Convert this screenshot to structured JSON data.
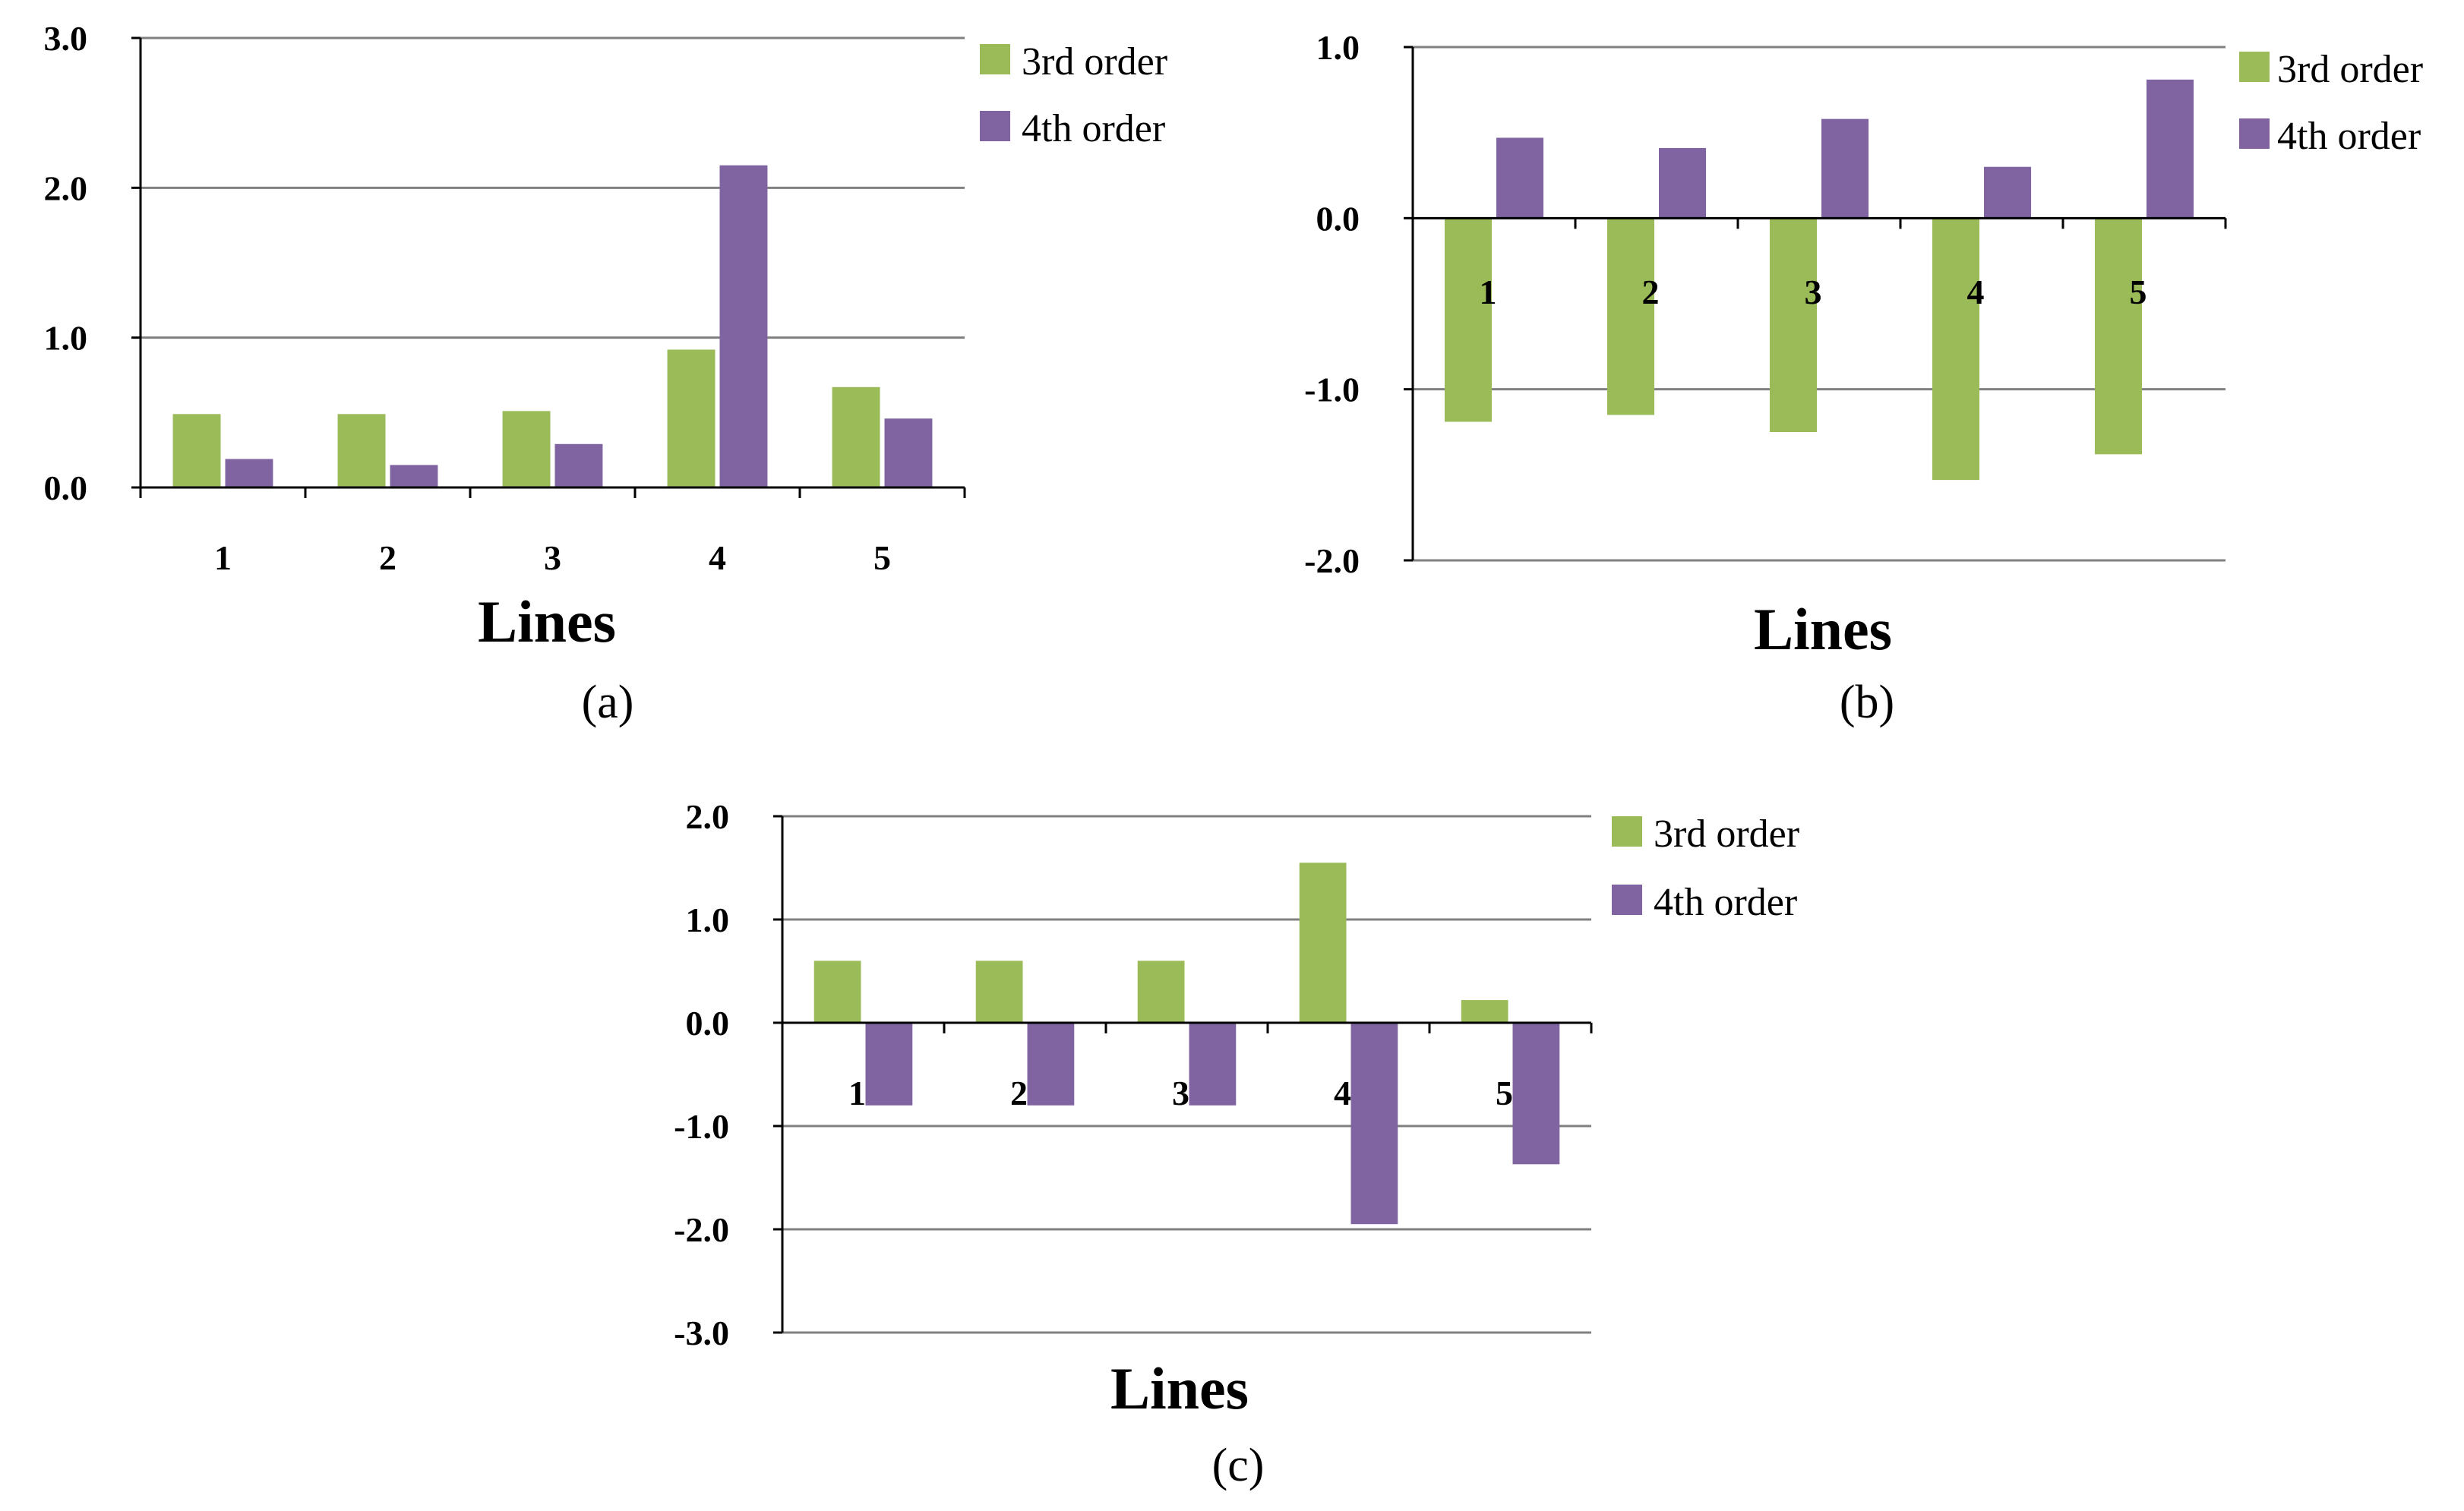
{
  "colors": {
    "series_3rd": "#9BBB59",
    "series_4th": "#8064A2",
    "grid": "#808080",
    "axis": "#000000"
  },
  "chart_data": [
    {
      "id": "a",
      "type": "bar",
      "panel_label": "(a)",
      "xlabel": "Lines",
      "categories": [
        "1",
        "2",
        "3",
        "4",
        "5"
      ],
      "series": [
        {
          "name": "3rd order",
          "values": [
            0.49,
            0.49,
            0.51,
            0.92,
            0.67
          ]
        },
        {
          "name": "4th order",
          "values": [
            0.19,
            0.15,
            0.29,
            2.15,
            0.46
          ]
        }
      ],
      "ylim": [
        0,
        3
      ],
      "yticks": [
        0,
        1,
        2,
        3
      ],
      "ytick_labels": [
        "0.0",
        "1.0",
        "2.0",
        "3.0"
      ],
      "grid": true,
      "legend": "top-right"
    },
    {
      "id": "b",
      "type": "bar",
      "panel_label": "(b)",
      "xlabel": "Lines",
      "categories": [
        "1",
        "2",
        "3",
        "4",
        "5"
      ],
      "series": [
        {
          "name": "3rd order",
          "values": [
            -1.19,
            -1.15,
            -1.25,
            -1.53,
            -1.38
          ]
        },
        {
          "name": "4th order",
          "values": [
            0.47,
            0.41,
            0.58,
            0.3,
            0.81
          ]
        }
      ],
      "ylim": [
        -2,
        1
      ],
      "yticks": [
        -2,
        -1,
        0,
        1
      ],
      "ytick_labels": [
        "-2.0",
        "-1.0",
        "0.0",
        "1.0"
      ],
      "grid": true,
      "legend": "top-right"
    },
    {
      "id": "c",
      "type": "bar",
      "panel_label": "(c)",
      "xlabel": "Lines",
      "categories": [
        "1",
        "2",
        "3",
        "4",
        "5"
      ],
      "series": [
        {
          "name": "3rd order",
          "values": [
            0.6,
            0.6,
            0.6,
            1.55,
            0.22
          ]
        },
        {
          "name": "4th order",
          "values": [
            -0.8,
            -0.8,
            -0.8,
            -1.95,
            -1.37
          ]
        }
      ],
      "ylim": [
        -3,
        2
      ],
      "yticks": [
        -3,
        -2,
        -1,
        0,
        1,
        2
      ],
      "ytick_labels": [
        "-3.0",
        "-2.0",
        "-1.0",
        "0.0",
        "1.0",
        "2.0"
      ],
      "grid": true,
      "legend": "top-right"
    }
  ]
}
